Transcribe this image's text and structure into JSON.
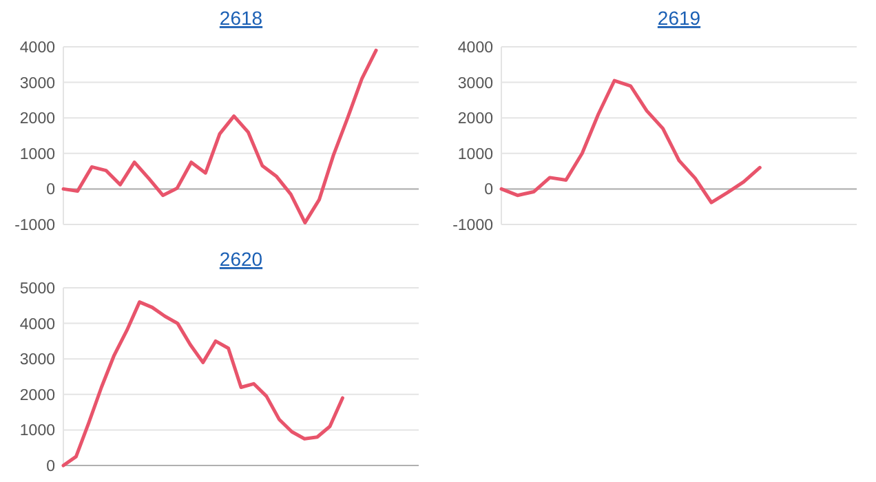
{
  "chart_data": [
    {
      "type": "line",
      "title": "2618",
      "categories": [
        null,
        null,
        null,
        null,
        null,
        null,
        null,
        null,
        null,
        null,
        null,
        null,
        null,
        null,
        null,
        null,
        null,
        null,
        null,
        null,
        null,
        null,
        null,
        null,
        null,
        null
      ],
      "series": [
        {
          "color": "#e8546b",
          "values": [
            0,
            -60,
            620,
            520,
            120,
            750,
            300,
            -180,
            20,
            750,
            450,
            1550,
            2050,
            1600,
            650,
            350,
            -150,
            -950,
            -300,
            950,
            2000,
            3100,
            3900,
            null,
            null,
            null
          ]
        }
      ],
      "ylim": [
        -1000,
        4000
      ],
      "yticks": [
        -1000,
        0,
        1000,
        2000,
        3000,
        4000
      ],
      "grid": "y",
      "tick_labels": "y",
      "marker": "none",
      "line_style": "solid"
    },
    {
      "type": "line",
      "title": "2619",
      "categories": [
        null,
        null,
        null,
        null,
        null,
        null,
        null,
        null,
        null,
        null,
        null,
        null,
        null,
        null,
        null,
        null,
        null,
        null,
        null,
        null,
        null,
        null,
        null
      ],
      "series": [
        {
          "color": "#e8546b",
          "values": [
            0,
            -180,
            -80,
            320,
            250,
            1000,
            2100,
            3050,
            2900,
            2200,
            1700,
            800,
            300,
            -380,
            -100,
            200,
            600,
            null,
            null,
            null,
            null,
            null,
            null
          ]
        }
      ],
      "ylim": [
        -1000,
        4000
      ],
      "yticks": [
        -1000,
        0,
        1000,
        2000,
        3000,
        4000
      ],
      "grid": "y",
      "tick_labels": "y",
      "marker": "none",
      "line_style": "solid"
    },
    {
      "type": "line",
      "title": "2620",
      "categories": [
        null,
        null,
        null,
        null,
        null,
        null,
        null,
        null,
        null,
        null,
        null,
        null,
        null,
        null,
        null,
        null,
        null,
        null,
        null,
        null,
        null,
        null,
        null,
        null,
        null,
        null,
        null,
        null,
        null
      ],
      "series": [
        {
          "color": "#e8546b",
          "values": [
            0,
            250,
            1200,
            2200,
            3100,
            3800,
            4600,
            4450,
            4200,
            4000,
            3400,
            2900,
            3500,
            3300,
            2200,
            2300,
            1950,
            1300,
            950,
            750,
            800,
            1100,
            1900,
            null,
            null,
            null,
            null,
            null,
            null
          ]
        }
      ],
      "ylim": [
        0,
        5000
      ],
      "yticks": [
        0,
        1000,
        2000,
        3000,
        4000,
        5000
      ],
      "grid": "y",
      "tick_labels": "y",
      "marker": "none",
      "line_style": "solid"
    }
  ]
}
